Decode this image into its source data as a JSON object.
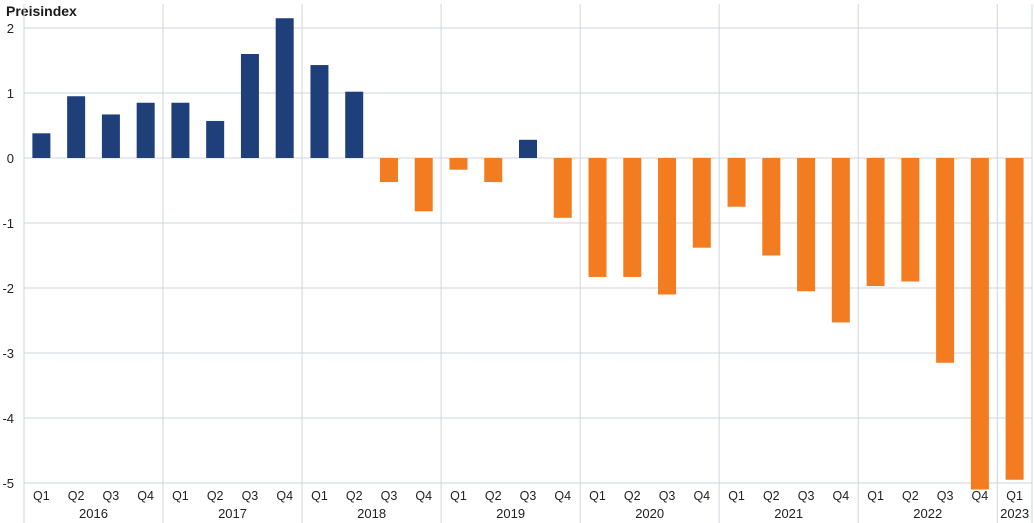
{
  "chart_data": {
    "type": "bar",
    "ylabel": "Preisindex",
    "ylim": [
      -5,
      2.2
    ],
    "yticks": [
      2,
      1,
      0,
      -1,
      -2,
      -3,
      -4,
      -5
    ],
    "grid": true,
    "colors": {
      "positive": "#1f3f7a",
      "negative": "#f47c20"
    },
    "years": [
      {
        "label": "2016",
        "quarters": [
          "Q1",
          "Q2",
          "Q3",
          "Q4"
        ]
      },
      {
        "label": "2017",
        "quarters": [
          "Q1",
          "Q2",
          "Q3",
          "Q4"
        ]
      },
      {
        "label": "2018",
        "quarters": [
          "Q1",
          "Q2",
          "Q3",
          "Q4"
        ]
      },
      {
        "label": "2019",
        "quarters": [
          "Q1",
          "Q2",
          "Q3",
          "Q4"
        ]
      },
      {
        "label": "2020",
        "quarters": [
          "Q1",
          "Q2",
          "Q3",
          "Q4"
        ]
      },
      {
        "label": "2021",
        "quarters": [
          "Q1",
          "Q2",
          "Q3",
          "Q4"
        ]
      },
      {
        "label": "2022",
        "quarters": [
          "Q1",
          "Q2",
          "Q3",
          "Q4"
        ]
      },
      {
        "label": "2023",
        "quarters": [
          "Q1"
        ]
      }
    ],
    "values": [
      0.38,
      0.95,
      0.67,
      0.85,
      0.85,
      0.57,
      1.6,
      2.15,
      1.43,
      1.02,
      -0.37,
      -0.82,
      -0.18,
      -0.37,
      0.28,
      -0.92,
      -1.83,
      -1.83,
      -2.1,
      -1.38,
      -0.75,
      -1.5,
      -2.05,
      -2.53,
      -1.97,
      -1.9,
      -3.15,
      -5.1,
      -4.95
    ]
  }
}
